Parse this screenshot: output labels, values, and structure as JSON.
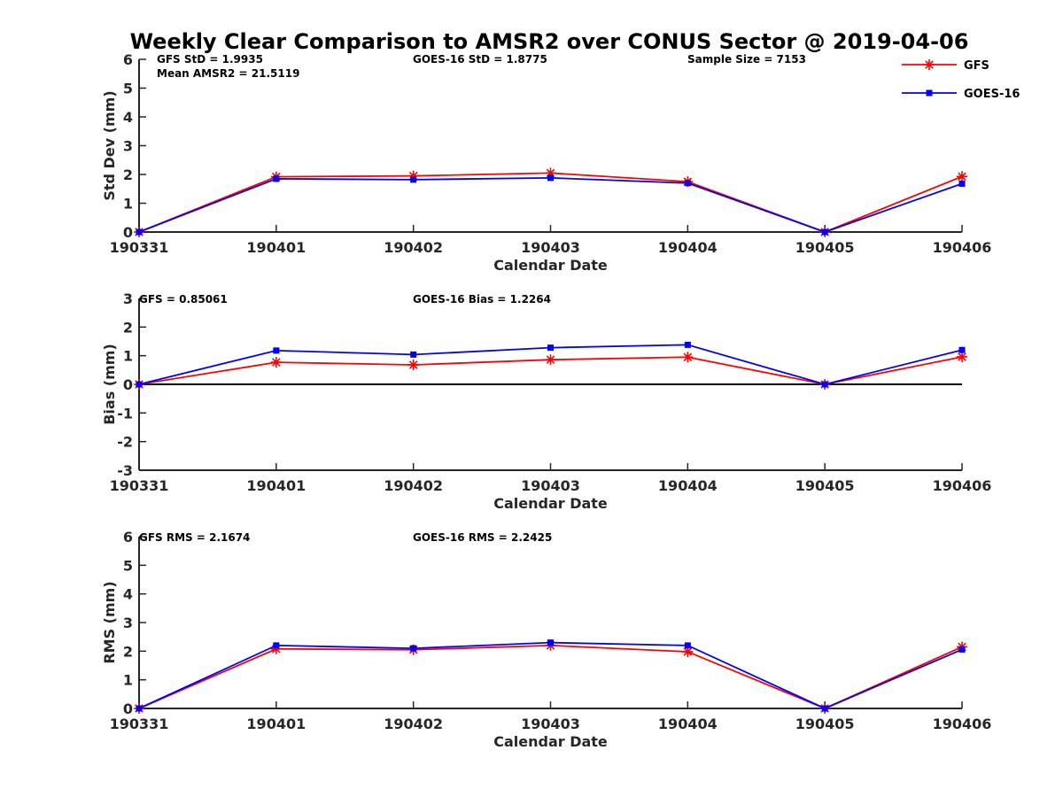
{
  "title": "Weekly Clear Comparison to AMSR2 over CONUS Sector @ 2019-04-06",
  "colors": {
    "gfs": "#ff0000",
    "goes": "#0000ff",
    "axis": "#262626",
    "zero_line": "#000000"
  },
  "legend": {
    "placement": "top-right",
    "entries": [
      "GFS",
      "GOES-16"
    ]
  },
  "chart_data": [
    {
      "type": "line",
      "xlabel": "Calendar Date",
      "ylabel": "Std Dev (mm)",
      "categories": [
        "190331",
        "190401",
        "190402",
        "190403",
        "190404",
        "190405",
        "190406"
      ],
      "ylim": [
        0,
        6
      ],
      "yticks": [
        "0",
        "1",
        "2",
        "3",
        "4",
        "5",
        "6"
      ],
      "series": [
        {
          "name": "GFS",
          "values": [
            0,
            1.92,
            1.95,
            2.05,
            1.75,
            0,
            1.93
          ]
        },
        {
          "name": "GOES-16",
          "values": [
            0,
            1.85,
            1.82,
            1.88,
            1.7,
            0,
            1.68
          ]
        }
      ],
      "annotations": {
        "gfs_stat": "GFS StD = 1.9935",
        "mean": "Mean AMSR2 = 21.5119",
        "goes_stat": "GOES-16 StD = 1.8775",
        "sample": "Sample Size = 7153"
      }
    },
    {
      "type": "line",
      "xlabel": "Calendar Date",
      "ylabel": "Bias (mm)",
      "categories": [
        "190331",
        "190401",
        "190402",
        "190403",
        "190404",
        "190405",
        "190406"
      ],
      "ylim": [
        -3,
        3
      ],
      "yticks": [
        "-3",
        "-2",
        "-1",
        "0",
        "1",
        "2",
        "3"
      ],
      "zero_line": true,
      "series": [
        {
          "name": "GFS",
          "values": [
            0,
            0.77,
            0.68,
            0.86,
            0.95,
            0,
            0.96
          ]
        },
        {
          "name": "GOES-16",
          "values": [
            0,
            1.18,
            1.04,
            1.28,
            1.38,
            0,
            1.2
          ]
        }
      ],
      "annotations": {
        "gfs_stat": "GFS = 0.85061",
        "goes_stat": "GOES-16 Bias  = 1.2264"
      }
    },
    {
      "type": "line",
      "xlabel": "Calendar Date",
      "ylabel": "RMS (mm)",
      "categories": [
        "190331",
        "190401",
        "190402",
        "190403",
        "190404",
        "190405",
        "190406"
      ],
      "ylim": [
        0,
        6
      ],
      "yticks": [
        "0",
        "1",
        "2",
        "3",
        "4",
        "5",
        "6"
      ],
      "series": [
        {
          "name": "GFS",
          "values": [
            0,
            2.08,
            2.05,
            2.2,
            1.98,
            0,
            2.15
          ]
        },
        {
          "name": "GOES-16",
          "values": [
            0,
            2.2,
            2.1,
            2.3,
            2.2,
            0,
            2.06
          ]
        }
      ],
      "annotations": {
        "gfs_stat": "GFS RMS = 2.1674",
        "goes_stat": "GOES-16 RMS = 2.2425"
      }
    }
  ]
}
